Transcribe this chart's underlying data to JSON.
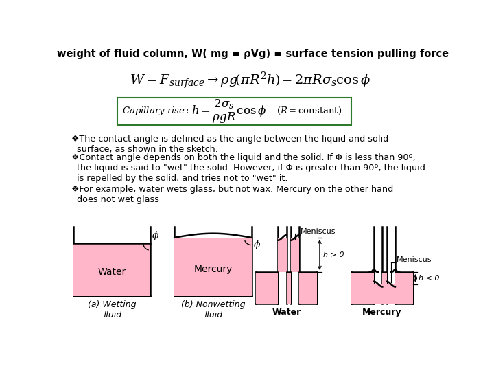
{
  "title": "weight of fluid column, W( mg = ρVg) = surface tension pulling force",
  "title_fontsize": 10.5,
  "bg_color": "#ffffff",
  "text_color": "#000000",
  "box_color": "#2d7a2d",
  "fluid_color": "#ffb6c8",
  "text_fontsize": 9.2,
  "bullet1": "❖The contact angle is defined as the angle between the liquid and solid\n  surface, as shown in the sketch.",
  "bullet2": "❖Contact angle depends on both the liquid and the solid. If Φ is less than 90º,\n  the liquid is said to \"wet\" the solid. However, if Φ is greater than 90º, the liquid\n  is repelled by the solid, and tries not to \"wet\" it.",
  "bullet3": "❖For example, water wets glass, but not wax. Mercury on the other hand\n  does not wet glass",
  "label_a": "(a) Wetting\nfluid",
  "label_b": "(b) Nonwetting\nfluid",
  "label_water1": "Water",
  "label_mercury1": "Mercury",
  "label_water2": "Water",
  "label_mercury2": "Mercury",
  "label_meniscus1": "Meniscus",
  "label_meniscus2": "Meniscus",
  "label_h_pos": "h > 0",
  "label_h_neg": "h < 0"
}
